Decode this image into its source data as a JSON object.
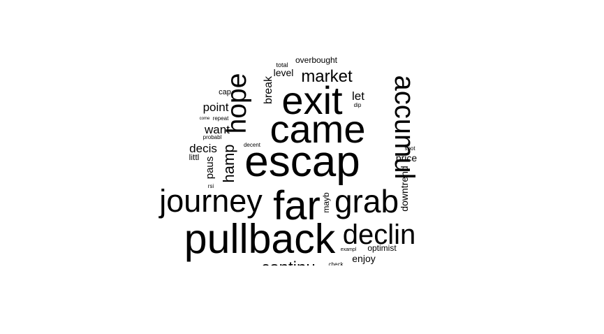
{
  "words": [
    {
      "text": "escap",
      "weight": 1.0
    },
    {
      "text": "pullback",
      "weight": 1.0
    },
    {
      "text": "came",
      "weight": 0.92
    },
    {
      "text": "exit",
      "weight": 0.92
    },
    {
      "text": "far",
      "weight": 0.9
    },
    {
      "text": "journey",
      "weight": 0.76
    },
    {
      "text": "grab",
      "weight": 0.76
    },
    {
      "text": "declin",
      "weight": 0.7
    },
    {
      "text": "accumul",
      "weight": 0.7
    },
    {
      "text": "hope",
      "weight": 0.7
    },
    {
      "text": "market",
      "weight": 0.42
    },
    {
      "text": "continu",
      "weight": 0.42
    },
    {
      "text": "hamp",
      "weight": 0.38
    },
    {
      "text": "point",
      "weight": 0.3
    },
    {
      "text": "want",
      "weight": 0.3
    },
    {
      "text": "decis",
      "weight": 0.3
    },
    {
      "text": "let",
      "weight": 0.3
    },
    {
      "text": "break",
      "weight": 0.28
    },
    {
      "text": "paus",
      "weight": 0.26
    },
    {
      "text": "downtrend",
      "weight": 0.26
    },
    {
      "text": "price",
      "weight": 0.26
    },
    {
      "text": "enjoy",
      "weight": 0.25
    },
    {
      "text": "level",
      "weight": 0.25
    },
    {
      "text": "overbought",
      "weight": 0.22
    },
    {
      "text": "optimist",
      "weight": 0.22
    },
    {
      "text": "mayb",
      "weight": 0.21
    },
    {
      "text": "littl",
      "weight": 0.2
    },
    {
      "text": "cap",
      "weight": 0.2
    },
    {
      "text": "total",
      "weight": 0.17
    },
    {
      "text": "dip",
      "weight": 0.16
    },
    {
      "text": "spot",
      "weight": 0.15
    },
    {
      "text": "rsi",
      "weight": 0.15
    },
    {
      "text": "probabl",
      "weight": 0.15
    },
    {
      "text": "repeat",
      "weight": 0.15
    },
    {
      "text": "decent",
      "weight": 0.15
    },
    {
      "text": "check",
      "weight": 0.14
    },
    {
      "text": "exampl",
      "weight": 0.13
    },
    {
      "text": "come",
      "weight": 0.12
    }
  ]
}
